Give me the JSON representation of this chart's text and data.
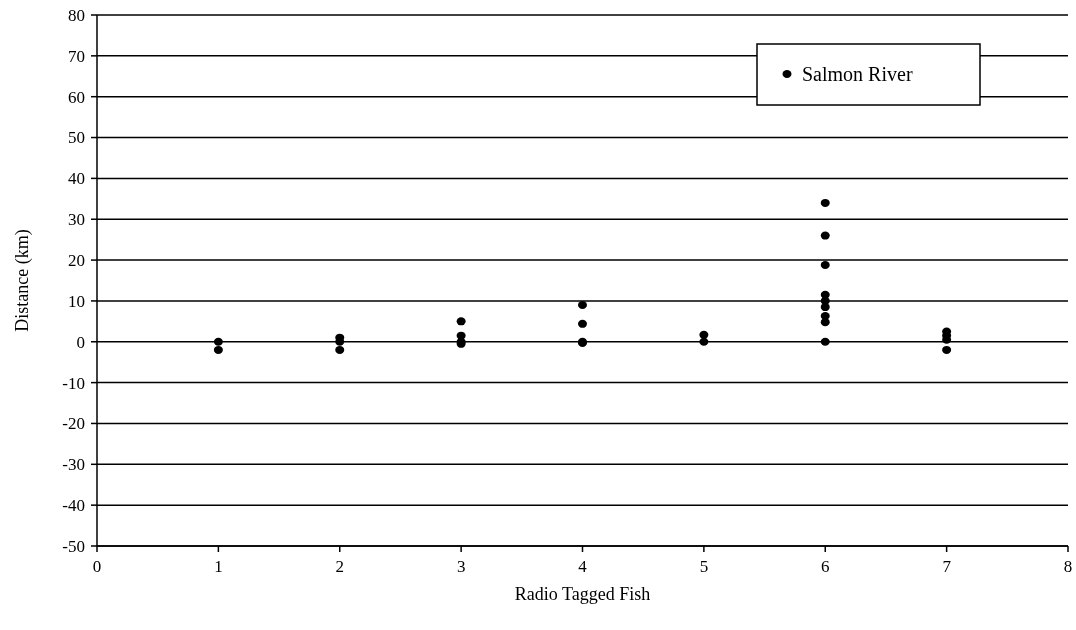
{
  "chart_data": {
    "type": "scatter",
    "xlabel": "Radio Tagged Fish",
    "ylabel": "Distance (km)",
    "series": [
      {
        "name": "Salmon River",
        "color": "#000000",
        "x": [
          1,
          1,
          2,
          2,
          2,
          3,
          3,
          3,
          3,
          4,
          4,
          4,
          4,
          5,
          5,
          6,
          6,
          6,
          6,
          6,
          6,
          6,
          6,
          6,
          7,
          7,
          7,
          7
        ],
        "values": [
          0,
          -2,
          1,
          0,
          -2,
          5,
          1.5,
          0,
          -0.5,
          9,
          4.4,
          0,
          -0.3,
          1.7,
          0,
          34,
          26,
          18.8,
          11.5,
          10,
          8.5,
          6.3,
          4.8,
          0,
          2.5,
          1.5,
          0.5,
          -2
        ]
      }
    ],
    "xlim": [
      0,
      8
    ],
    "xticks": [
      0,
      1,
      2,
      3,
      4,
      5,
      6,
      7,
      8
    ],
    "ylim": [
      -50,
      80
    ],
    "yticks": [
      -50,
      -40,
      -30,
      -20,
      -10,
      0,
      10,
      20,
      30,
      40,
      50,
      60,
      70,
      80
    ],
    "grid": "y",
    "legend": "top right",
    "marker": "circle"
  }
}
